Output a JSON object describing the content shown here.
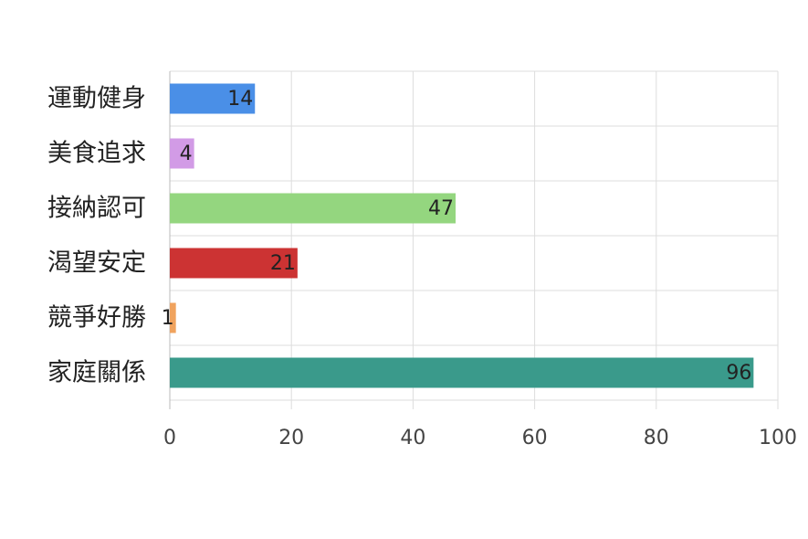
{
  "chart_data": {
    "type": "bar",
    "orientation": "horizontal",
    "categories": [
      "運動健身",
      "美食追求",
      "接納認可",
      "渴望安定",
      "競爭好勝",
      "家庭關係"
    ],
    "values": [
      14,
      4,
      47,
      21,
      1,
      96
    ],
    "colors": [
      "#4a8fe7",
      "#d29be6",
      "#94d67f",
      "#cc3333",
      "#f0a35e",
      "#3a9a8b"
    ],
    "xlim": [
      0,
      100
    ],
    "xticks": [
      0,
      20,
      40,
      60,
      80,
      100
    ],
    "grid": true
  }
}
